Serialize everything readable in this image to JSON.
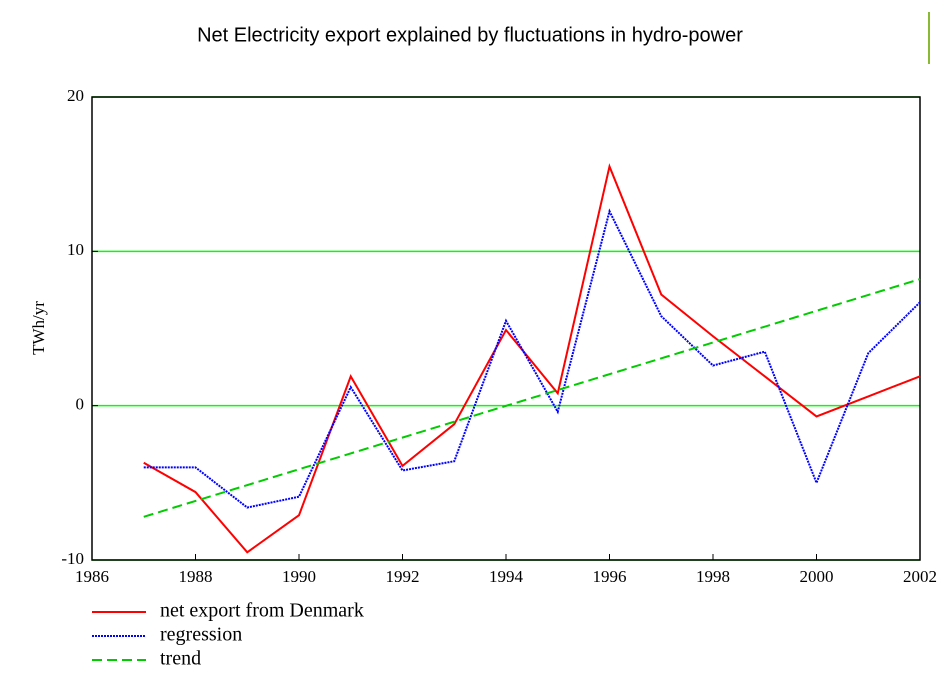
{
  "chart_data": {
    "type": "line",
    "title": "Net Electricity export explained by fluctuations in hydro-power",
    "ylabel": "TWh/yr",
    "x": [
      1987,
      1988,
      1989,
      1990,
      1991,
      1992,
      1993,
      1994,
      1995,
      1996,
      1997,
      1998,
      1999,
      2000,
      2001,
      2002
    ],
    "series": [
      {
        "name": "net export from Denmark",
        "color": "#ff0000",
        "style": "solid",
        "values": [
          -3.7,
          -5.6,
          -9.5,
          -7.1,
          1.9,
          -3.9,
          -1.2,
          4.9,
          0.8,
          15.5,
          7.2,
          4.5,
          1.9,
          -0.7,
          0.6,
          1.9
        ]
      },
      {
        "name": "regression",
        "color": "#0000ff",
        "style": "dotted",
        "values": [
          -4.0,
          -4.0,
          -6.6,
          -5.9,
          1.2,
          -4.2,
          -3.6,
          5.5,
          -0.4,
          12.6,
          5.8,
          2.6,
          3.5,
          -5.0,
          3.4,
          6.7
        ]
      },
      {
        "name": "trend",
        "color": "#00cc00",
        "style": "dashed",
        "x": [
          1987,
          2002
        ],
        "values": [
          -7.2,
          8.2
        ]
      }
    ],
    "xlim": [
      1986,
      2002
    ],
    "xticks": [
      1986,
      1988,
      1990,
      1992,
      1994,
      1996,
      1998,
      2000,
      2002
    ],
    "ylim": [
      -10,
      20
    ],
    "yticks": [
      -10,
      0,
      10,
      20
    ],
    "grid": true,
    "grid_color": "#00ff00",
    "legend": "bottom-left"
  }
}
